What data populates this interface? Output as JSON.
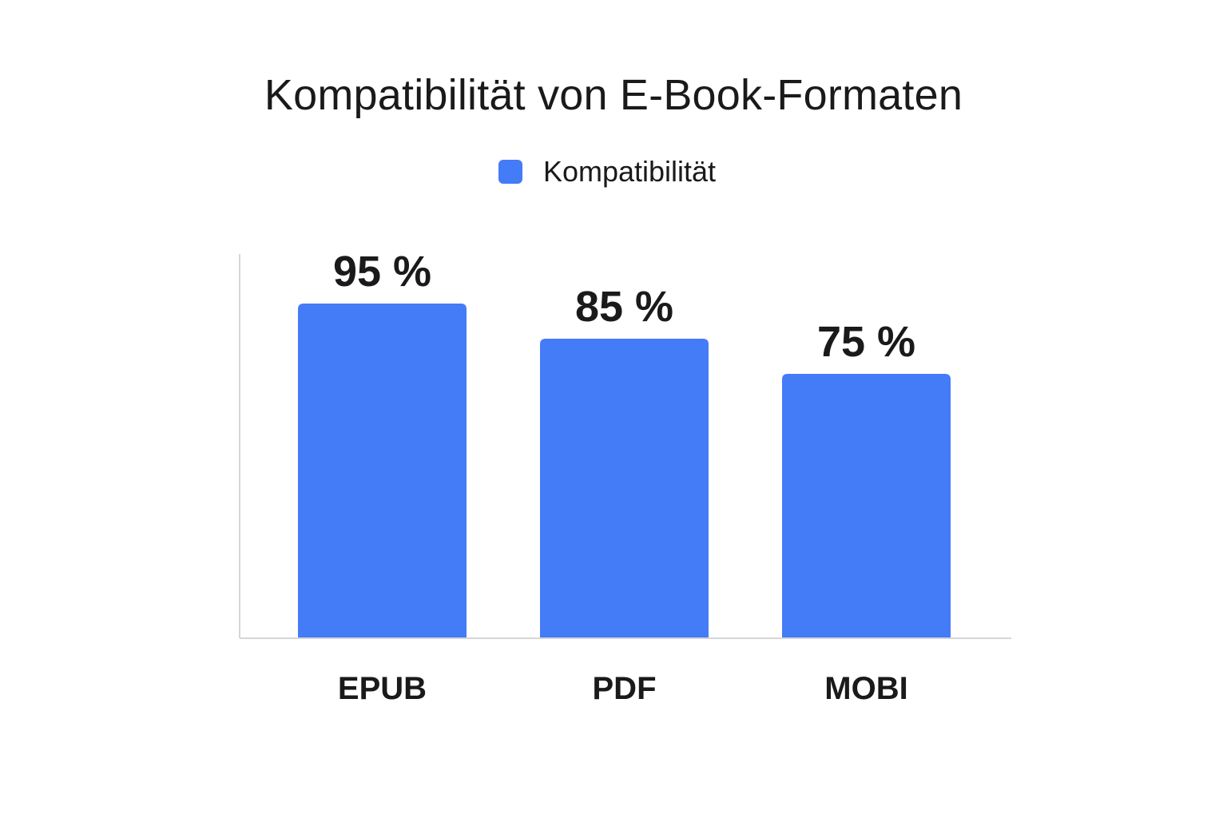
{
  "chart_data": {
    "type": "bar",
    "title": "Kompatibilität von E-Book-Formaten",
    "xlabel": "",
    "ylabel": "",
    "categories": [
      "EPUB",
      "PDF",
      "MOBI"
    ],
    "series": [
      {
        "name": "Kompatibilität",
        "values": [
          95,
          85,
          75
        ],
        "value_labels": [
          "95 %",
          "85 %",
          "75 %"
        ],
        "color": "#447BF7"
      }
    ],
    "ylim": [
      0,
      115
    ],
    "grid": false,
    "legend_position": "top-center"
  }
}
